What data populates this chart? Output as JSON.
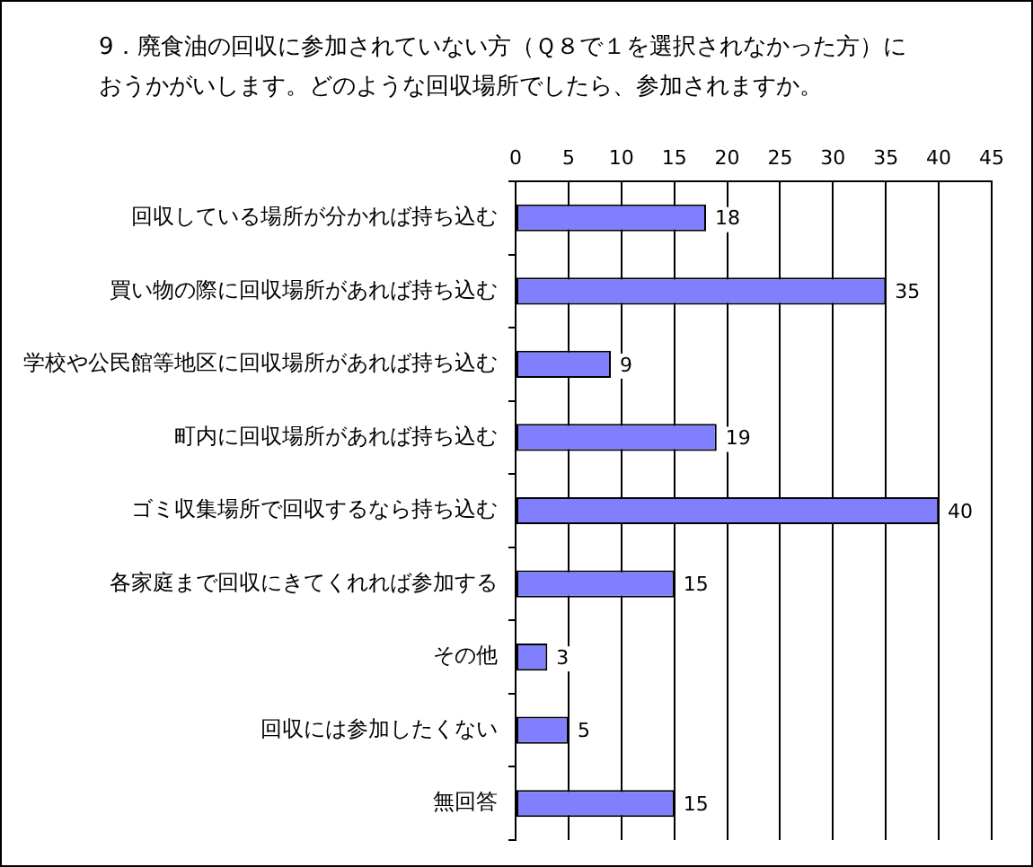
{
  "chart_data": {
    "type": "bar",
    "orientation": "horizontal",
    "title": "9．廃食油の回収に参加されていない方（Ｑ８で１を選択されなかった方）におうかがいします。どのような回収場所でしたら、参加されますか。",
    "categories": [
      "回収している場所が分かれば持ち込む",
      "買い物の際に回収場所があれば持ち込む",
      "学校や公民館等地区に回収場所があれば持ち込む",
      "町内に回収場所があれば持ち込む",
      "ゴミ収集場所で回収するなら持ち込む",
      "各家庭まで回収にきてくれれば参加する",
      "その他",
      "回収には参加したくない",
      "無回答"
    ],
    "values": [
      18,
      35,
      9,
      19,
      40,
      15,
      3,
      5,
      15
    ],
    "color": "#8080ff",
    "xlim": [
      0,
      45
    ],
    "xticks": [
      0,
      5,
      10,
      15,
      20,
      25,
      30,
      35,
      40,
      45
    ],
    "grid": "x",
    "data_labels": true
  }
}
